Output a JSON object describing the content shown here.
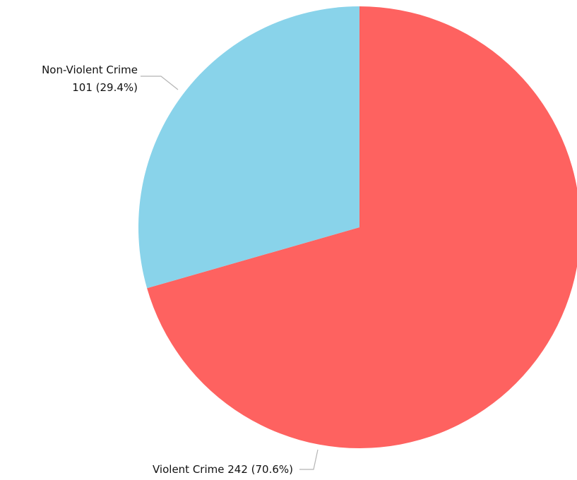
{
  "chart_data": {
    "type": "pie",
    "title": "",
    "slices": [
      {
        "name": "Violent Crime",
        "value": 242,
        "percent": 70.6,
        "color": "#fe6260",
        "label": "Violent Crime 242 (70.6%)"
      },
      {
        "name": "Non-Violent Crime",
        "value": 101,
        "percent": 29.4,
        "color": "#89d3ea",
        "label_line1": "Non-Violent Crime",
        "label_line2": "101 (29.4%)"
      }
    ],
    "start_angle_deg": 0,
    "direction": "clockwise",
    "legend": "none"
  }
}
